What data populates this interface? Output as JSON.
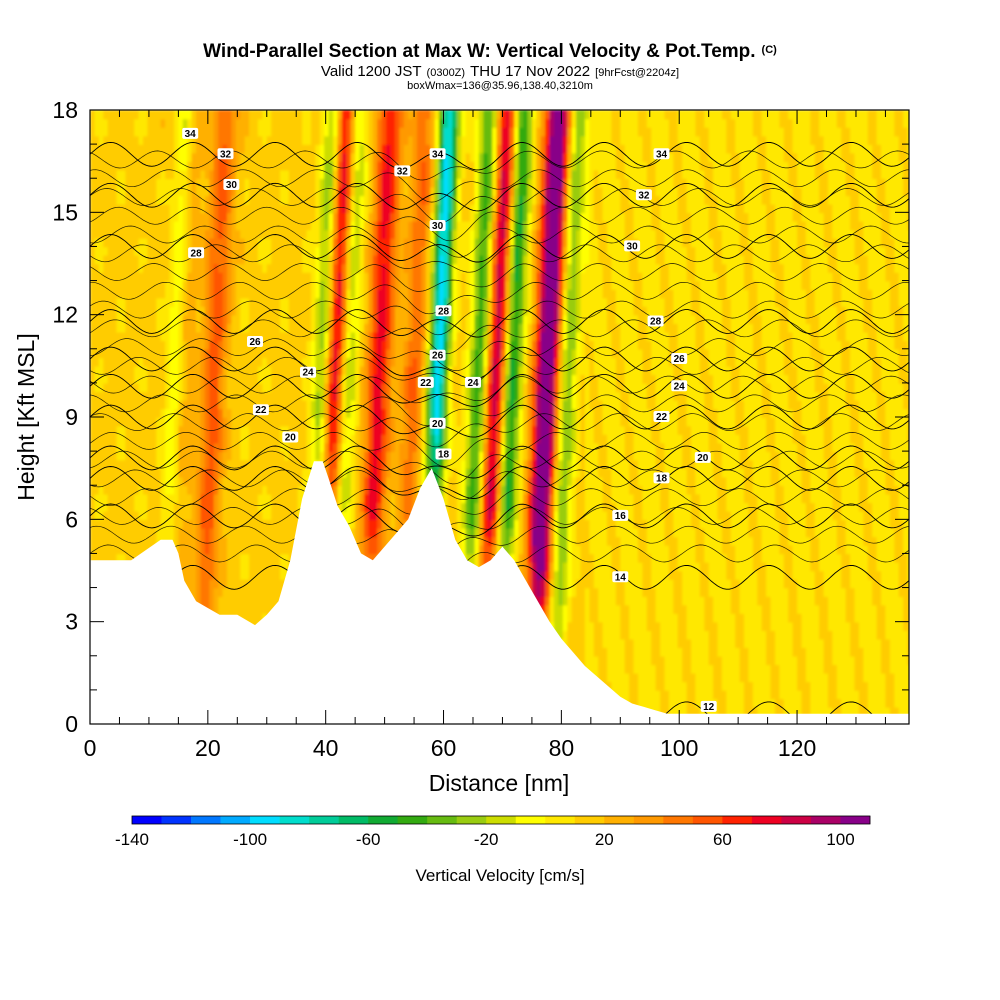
{
  "header": {
    "title": "Wind-Parallel Section at Max W: Vertical Velocity & Pot.Temp.",
    "title_unit": "(C)",
    "valid_prefix": "Valid 1200 JST",
    "valid_utc": "(0300Z)",
    "valid_date": "THU 17 Nov 2022",
    "forecast": "[9hrFcst@2204z]",
    "box_info": "boxWmax=136@35.96,138.40,3210m"
  },
  "chart_data": {
    "type": "heatmap",
    "xlabel": "Distance [nm]",
    "ylabel": "Height [Kft MSL]",
    "xlim": [
      0,
      139
    ],
    "ylim": [
      0,
      18
    ],
    "x_ticks": [
      "0",
      "20",
      "40",
      "60",
      "80",
      "100",
      "120"
    ],
    "x_tick_values": [
      0,
      20,
      40,
      60,
      80,
      100,
      120
    ],
    "y_ticks": [
      "0",
      "3",
      "6",
      "9",
      "12",
      "15",
      "18"
    ],
    "y_tick_values": [
      0,
      3,
      6,
      9,
      12,
      15,
      18
    ],
    "colorbar": {
      "label": "Vertical Velocity [cm/s]",
      "tick_labels": [
        "-140",
        "-100",
        "-60",
        "-20",
        "20",
        "60",
        "100"
      ],
      "tick_values": [
        -140,
        -100,
        -60,
        -20,
        20,
        60,
        100
      ],
      "range": [
        -140,
        110
      ],
      "step": 10,
      "colors": [
        "#0000ff",
        "#0033ff",
        "#0077ff",
        "#00aaff",
        "#00ddff",
        "#00ddcc",
        "#00cc99",
        "#00bb66",
        "#11aa33",
        "#33aa11",
        "#66bb11",
        "#99cc11",
        "#ccdd00",
        "#ffff00",
        "#ffe800",
        "#ffcc00",
        "#ffb000",
        "#ff9900",
        "#ff7700",
        "#ff5500",
        "#ff2200",
        "#ee0022",
        "#cc0044",
        "#aa0066",
        "#880088"
      ]
    },
    "terrain": {
      "x": [
        0,
        7,
        12,
        14,
        15,
        16,
        18,
        20,
        22,
        25,
        28,
        30,
        32,
        34,
        36,
        38,
        39.5,
        40.5,
        42,
        44,
        46,
        48,
        50,
        52,
        54,
        56,
        58,
        60,
        62,
        64,
        66,
        68,
        70,
        72,
        74,
        76,
        78,
        80,
        82,
        84,
        86,
        88,
        90,
        92,
        94,
        96,
        98,
        100,
        102,
        104,
        106,
        108,
        110,
        112,
        116,
        120,
        126,
        132,
        139
      ],
      "height": [
        4.8,
        4.8,
        5.4,
        5.4,
        5.0,
        4.2,
        3.6,
        3.4,
        3.2,
        3.2,
        2.9,
        3.2,
        3.6,
        4.8,
        6.6,
        7.7,
        7.7,
        7.2,
        6.4,
        5.8,
        5.0,
        4.8,
        5.2,
        5.6,
        6.0,
        6.9,
        7.5,
        6.6,
        5.4,
        4.8,
        4.6,
        4.8,
        5.2,
        4.8,
        4.2,
        3.6,
        3.0,
        2.5,
        2.1,
        1.7,
        1.4,
        1.1,
        0.8,
        0.6,
        0.5,
        0.4,
        0.3,
        0.3,
        0.3,
        0.3,
        0.3,
        0.3,
        0.3,
        0.3,
        0.3,
        0.3,
        0.3,
        0.3,
        0.3
      ]
    },
    "updrafts_cm_s": [
      {
        "x": 14,
        "w": 40
      },
      {
        "x": 20,
        "w": 40
      },
      {
        "x": 40.5,
        "w": 85
      },
      {
        "x": 48,
        "w": 60
      },
      {
        "x": 54,
        "w": 35
      },
      {
        "x": 68,
        "w": 80
      },
      {
        "x": 76.5,
        "w": 110
      }
    ],
    "downdrafts_cm_s": [
      {
        "x": 13.5,
        "w": -55
      },
      {
        "x": 38.5,
        "w": -60
      },
      {
        "x": 42.5,
        "w": -50
      },
      {
        "x": 58,
        "w": -110
      },
      {
        "x": 65,
        "w": -65
      },
      {
        "x": 70.5,
        "w": -80
      },
      {
        "x": 80,
        "w": -45
      }
    ],
    "theta_contours": {
      "levels": [
        12,
        14,
        16,
        18,
        20,
        22,
        24,
        26,
        28,
        30,
        32,
        34
      ],
      "labels": [
        {
          "text": "34",
          "x": 17,
          "y": 17.3
        },
        {
          "text": "32",
          "x": 23,
          "y": 16.7
        },
        {
          "text": "30",
          "x": 24,
          "y": 15.8
        },
        {
          "text": "28",
          "x": 18,
          "y": 13.8
        },
        {
          "text": "26",
          "x": 28,
          "y": 11.2
        },
        {
          "text": "24",
          "x": 37,
          "y": 10.3
        },
        {
          "text": "22",
          "x": 29,
          "y": 9.2
        },
        {
          "text": "20",
          "x": 34,
          "y": 8.4
        },
        {
          "text": "34",
          "x": 59,
          "y": 16.7
        },
        {
          "text": "32",
          "x": 53,
          "y": 16.2
        },
        {
          "text": "30",
          "x": 59,
          "y": 14.6
        },
        {
          "text": "28",
          "x": 60,
          "y": 12.1
        },
        {
          "text": "26",
          "x": 59,
          "y": 10.8
        },
        {
          "text": "22",
          "x": 57,
          "y": 10.0
        },
        {
          "text": "24",
          "x": 65,
          "y": 10.0
        },
        {
          "text": "20",
          "x": 59,
          "y": 8.8
        },
        {
          "text": "18",
          "x": 60,
          "y": 7.9
        },
        {
          "text": "34",
          "x": 97,
          "y": 16.7
        },
        {
          "text": "32",
          "x": 94,
          "y": 15.5
        },
        {
          "text": "30",
          "x": 92,
          "y": 14.0
        },
        {
          "text": "28",
          "x": 96,
          "y": 11.8
        },
        {
          "text": "26",
          "x": 100,
          "y": 10.7
        },
        {
          "text": "24",
          "x": 100,
          "y": 9.9
        },
        {
          "text": "22",
          "x": 97,
          "y": 9.0
        },
        {
          "text": "20",
          "x": 104,
          "y": 7.8
        },
        {
          "text": "18",
          "x": 97,
          "y": 7.2
        },
        {
          "text": "16",
          "x": 90,
          "y": 6.1
        },
        {
          "text": "14",
          "x": 90,
          "y": 4.3
        },
        {
          "text": "12",
          "x": 105,
          "y": 0.5
        }
      ]
    }
  }
}
